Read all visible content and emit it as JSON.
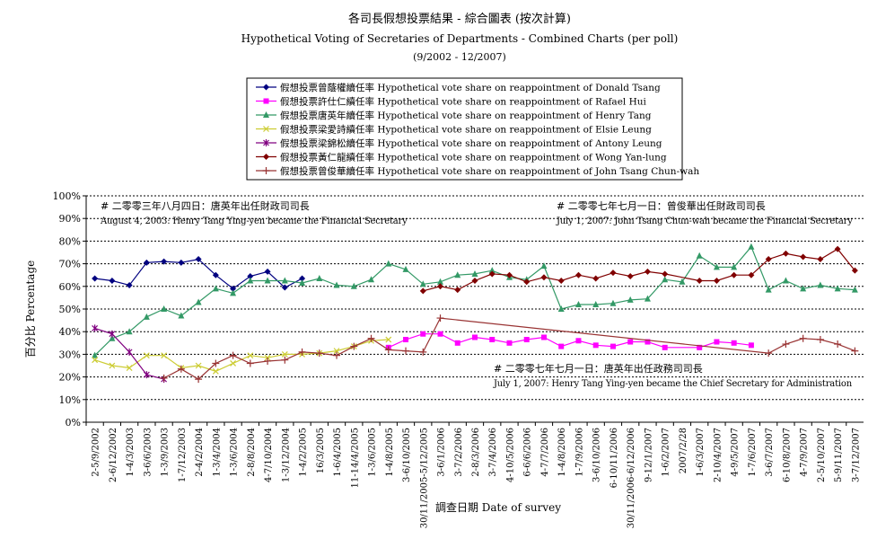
{
  "chart_data": {
    "type": "line",
    "title": "各司長假想投票結果 - 綜合圖表 (按次計算)",
    "subtitle": "Hypothetical Voting of Secretaries of Departments - Combined Charts (per poll)",
    "period": "(9/2002 - 12/2007)",
    "xlabel": "調查日期 Date of survey",
    "ylabel": "百分比 Percentage",
    "ylim": [
      0,
      100
    ],
    "yticks": [
      "0%",
      "10%",
      "20%",
      "30%",
      "40%",
      "50%",
      "60%",
      "70%",
      "80%",
      "90%",
      "100%"
    ],
    "grid": true,
    "legend_position": "top-center",
    "categories": [
      "2-5/9/2002",
      "2-6/12/2002",
      "1-4/3/2003",
      "3-6/6/2003",
      "1-3/9/2003",
      "1-7/12/2003",
      "2-4/2/2004",
      "1-3/4/2004",
      "1-3/6/2004",
      "2-8/8/2004",
      "4-7/10/2004",
      "1-3/12/2004",
      "1-4/2/2005",
      "16/3/2005",
      "1-6/4/2005",
      "11-14/4/2005",
      "1-3/6/2005",
      "1-4/8/2005",
      "3-6/10/2005",
      "30/11/2005-5/12/2005",
      "3-6/1/2006",
      "3-7/2/2006",
      "2-8/3/2006",
      "3-7/4/2006",
      "4-10/5/2006",
      "6-6/6/2006",
      "4-7/7/2006",
      "1-4/8/2006",
      "1-7/9/2006",
      "3-6/10/2006",
      "6-10/11/2006",
      "30/11/2006-6/12/2006",
      "9-12/1/2007",
      "1-6/2/2007",
      "2007/2/28",
      "1-6/3/2007",
      "2-10/4/2007",
      "4-9/5/2007",
      "1-7/6/2007",
      "3-6/7/2007",
      "6-10/8/2007",
      "4-7/9/2007",
      "2-5/10/2007",
      "5-9/11/2007",
      "3-7/12/2007"
    ],
    "series": [
      {
        "name": "假想投票曾蔭權續任率 Hypothetical vote share on reappointment of Donald Tsang",
        "color": "#000080",
        "marker": "diamond",
        "values": [
          63.5,
          62.5,
          60.5,
          70.5,
          71.0,
          70.5,
          72.0,
          65.0,
          59.0,
          64.5,
          66.5,
          59.5,
          63.5,
          null,
          null,
          null,
          null,
          null,
          null,
          null,
          null,
          null,
          null,
          null,
          null,
          null,
          null,
          null,
          null,
          null,
          null,
          null,
          null,
          null,
          null,
          null,
          null,
          null,
          null,
          null,
          null,
          null,
          null,
          null,
          null
        ]
      },
      {
        "name": "假想投票許仕仁續任率 Hypothetical vote share on reappointment of Rafael Hui",
        "color": "#ff00ff",
        "marker": "square",
        "values": [
          null,
          null,
          null,
          null,
          null,
          null,
          null,
          null,
          null,
          null,
          null,
          null,
          null,
          null,
          null,
          null,
          null,
          33.0,
          36.5,
          39.0,
          39.0,
          35.0,
          37.5,
          36.5,
          35.0,
          36.5,
          37.5,
          33.5,
          36.0,
          34.0,
          33.5,
          35.5,
          35.5,
          33.0,
          null,
          33.0,
          35.5,
          35.0,
          34.0,
          null,
          null,
          null,
          null,
          null,
          null
        ]
      },
      {
        "name": "假想投票唐英年續任率 Hypothetical vote share on reappointment of Henry Tang",
        "color": "#339966",
        "marker": "triangle",
        "values": [
          29.5,
          37.0,
          40.0,
          46.5,
          50.0,
          47.0,
          53.0,
          59.0,
          57.0,
          62.5,
          62.5,
          62.5,
          61.5,
          63.5,
          60.5,
          60.0,
          63.0,
          70.0,
          67.5,
          61.0,
          62.0,
          65.0,
          65.5,
          67.0,
          64.0,
          63.0,
          69.0,
          50.0,
          52.0,
          52.0,
          52.5,
          54.0,
          54.5,
          63.0,
          62.0,
          73.5,
          68.5,
          68.5,
          77.5,
          58.5,
          62.5,
          59.0,
          60.5,
          59.0,
          58.5
        ]
      },
      {
        "name": "假想投票梁愛詩續任率 Hypothetical vote share on reappointment of Elsie Leung",
        "color": "#cccc33",
        "marker": "x",
        "values": [
          27.5,
          25.0,
          24.0,
          29.5,
          29.5,
          24.0,
          25.0,
          22.5,
          26.0,
          29.5,
          28.5,
          30.0,
          30.0,
          30.5,
          31.5,
          33.5,
          36.0,
          36.5,
          null,
          null,
          null,
          null,
          null,
          null,
          null,
          null,
          null,
          null,
          null,
          null,
          null,
          null,
          null,
          null,
          null,
          null,
          null,
          null,
          null,
          null,
          null,
          null,
          null,
          null,
          null
        ]
      },
      {
        "name": "假想投票梁錦松續任率 Hypothetical vote share on reappointment of Antony Leung",
        "color": "#800080",
        "marker": "star",
        "values": [
          41.5,
          39.0,
          31.0,
          21.0,
          19.0,
          null,
          null,
          null,
          null,
          null,
          null,
          null,
          null,
          null,
          null,
          null,
          null,
          null,
          null,
          null,
          null,
          null,
          null,
          null,
          null,
          null,
          null,
          null,
          null,
          null,
          null,
          null,
          null,
          null,
          null,
          null,
          null,
          null,
          null,
          null,
          null,
          null,
          null,
          null,
          null
        ]
      },
      {
        "name": "假想投票黃仁龍續任率 Hypothetical vote share on reappointment of Wong Yan-lung",
        "color": "#800000",
        "marker": "diamond",
        "values": [
          null,
          null,
          null,
          null,
          null,
          null,
          null,
          null,
          null,
          null,
          null,
          null,
          null,
          null,
          null,
          null,
          null,
          null,
          null,
          58.0,
          60.0,
          58.5,
          62.5,
          65.5,
          65.0,
          62.0,
          64.0,
          62.5,
          65.0,
          63.5,
          66.0,
          64.5,
          66.5,
          65.5,
          null,
          62.5,
          62.5,
          65.0,
          65.0,
          72.0,
          74.5,
          73.0,
          72.0,
          76.5,
          67.0
        ]
      },
      {
        "name": "假想投票曾俊華續任率 Hypothetical vote share on reappointment of John Tsang Chun-wah",
        "color": "#993333",
        "marker": "plus",
        "values": [
          null,
          null,
          null,
          null,
          19.5,
          23.5,
          19.0,
          26.0,
          29.5,
          26.0,
          27.0,
          27.5,
          31.0,
          30.5,
          29.5,
          33.5,
          37.0,
          32.0,
          31.5,
          31.0,
          46.0,
          null,
          null,
          null,
          null,
          null,
          null,
          null,
          null,
          null,
          null,
          null,
          null,
          null,
          null,
          null,
          null,
          null,
          null,
          30.5,
          34.5,
          37.0,
          36.5,
          34.5,
          31.5
        ]
      }
    ],
    "annotations": [
      {
        "zh": "# 二零零三年八月四日：唐英年出任財政司司長",
        "en": "August 4, 2003: Henry Tang Ying-yen became the Financial Secretary"
      },
      {
        "zh": "# 二零零七年七月一日：曾俊華出任財政司司長",
        "en": "July 1, 2007: John Tsang Chun-wah became the Financial Secretary"
      },
      {
        "zh": "# 二零零七年七月一日：唐英年出任政務司司長",
        "en": "July 1, 2007: Henry Tang Ying-yen became the Chief Secretary for Administration"
      }
    ]
  }
}
